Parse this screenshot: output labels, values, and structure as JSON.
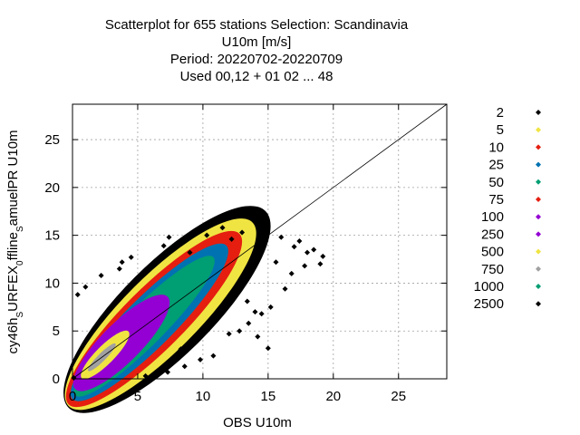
{
  "chart_data": {
    "type": "scatter",
    "title_lines": [
      "Scatterplot for  655 stations Selection: Scandinavia",
      "U10m [m/s]",
      "Period: 20220702-20220709",
      "Used  00,12  + 01 02 ... 48"
    ],
    "xlabel": "OBS U10m",
    "ylabel": "cy46h_sURFEX_0ffline_samuelPR U10m",
    "ylabel_parts": [
      {
        "text": "cy46h",
        "sub": false
      },
      {
        "text": "S",
        "sub": true
      },
      {
        "text": "URFEX",
        "sub": false
      },
      {
        "text": "0",
        "sub": true
      },
      {
        "text": "ffline",
        "sub": false
      },
      {
        "text": "S",
        "sub": true
      },
      {
        "text": "amuelPR U10m",
        "sub": false
      }
    ],
    "xlim": [
      0,
      28.7
    ],
    "ylim": [
      0,
      28.7
    ],
    "xticks": [
      0,
      5,
      10,
      15,
      20,
      25
    ],
    "yticks": [
      0,
      5,
      10,
      15,
      20,
      25
    ],
    "grid": true,
    "legend_placement": "right",
    "legend": [
      {
        "label": "2",
        "color": "#000000"
      },
      {
        "label": "5",
        "color": "#f0e442"
      },
      {
        "label": "10",
        "color": "#e51e10"
      },
      {
        "label": "25",
        "color": "#0072b2"
      },
      {
        "label": "50",
        "color": "#009e73"
      },
      {
        "label": "75",
        "color": "#e51e10"
      },
      {
        "label": "100",
        "color": "#9400d3"
      },
      {
        "label": "250",
        "color": "#9400d3"
      },
      {
        "label": "500",
        "color": "#f0e442"
      },
      {
        "label": "750",
        "color": "#a0a0a0"
      },
      {
        "label": "1000",
        "color": "#009e73"
      },
      {
        "label": "2500",
        "color": "#000000"
      }
    ],
    "diagonal": {
      "from": [
        0,
        0
      ],
      "to": [
        28.7,
        28.7
      ]
    },
    "density_bands": [
      {
        "level": "2",
        "color": "#000000",
        "along": [
          0,
          14.5
        ],
        "spread": [
          3.2,
          3.8
        ]
      },
      {
        "level": "5",
        "color": "#f0e442",
        "along": [
          0,
          13.5
        ],
        "spread": [
          2.6,
          3.2
        ]
      },
      {
        "level": "10",
        "color": "#e51e10",
        "along": [
          0,
          12.5
        ],
        "spread": [
          2.0,
          2.7
        ]
      },
      {
        "level": "25",
        "color": "#0072b2",
        "along": [
          0.3,
          11.5
        ],
        "spread": [
          1.6,
          2.2
        ]
      },
      {
        "level": "50",
        "color": "#009e73",
        "along": [
          0.5,
          10.5
        ],
        "spread": [
          1.2,
          1.8
        ]
      },
      {
        "level": "100",
        "color": "#9400d3",
        "along": [
          0.5,
          7.0
        ],
        "spread": [
          1.6,
          1.4
        ]
      },
      {
        "level": "500",
        "color": "#f0e442",
        "along": [
          1.0,
          4.0
        ],
        "spread": [
          0.7,
          0.7
        ]
      },
      {
        "level": "750",
        "color": "#a0a0a0",
        "along": [
          1.5,
          3.0
        ],
        "spread": [
          0.3,
          0.3
        ]
      }
    ],
    "outliers": [
      {
        "x": 11.0,
        "y": 16.4
      },
      {
        "x": 11.5,
        "y": 15.8
      },
      {
        "x": 14.1,
        "y": 17.0
      },
      {
        "x": 10.3,
        "y": 15.0
      },
      {
        "x": 7.4,
        "y": 14.8
      },
      {
        "x": 7.0,
        "y": 13.9
      },
      {
        "x": 4.5,
        "y": 12.7
      },
      {
        "x": 3.8,
        "y": 12.2
      },
      {
        "x": 2.2,
        "y": 10.8
      },
      {
        "x": 1.0,
        "y": 9.6
      },
      {
        "x": 0.4,
        "y": 8.8
      },
      {
        "x": 16.0,
        "y": 14.8
      },
      {
        "x": 17.0,
        "y": 13.8
      },
      {
        "x": 18.0,
        "y": 13.2
      },
      {
        "x": 19.2,
        "y": 12.8
      },
      {
        "x": 19.0,
        "y": 12.0
      },
      {
        "x": 18.5,
        "y": 13.5
      },
      {
        "x": 17.8,
        "y": 11.8
      },
      {
        "x": 15.2,
        "y": 7.5
      },
      {
        "x": 14.5,
        "y": 6.8
      },
      {
        "x": 14.0,
        "y": 7.0
      },
      {
        "x": 13.5,
        "y": 5.8
      },
      {
        "x": 15.0,
        "y": 3.2
      },
      {
        "x": 14.2,
        "y": 4.4
      },
      {
        "x": 12.8,
        "y": 5.0
      },
      {
        "x": 12.0,
        "y": 4.7
      },
      {
        "x": 10.8,
        "y": 2.4
      },
      {
        "x": 8.6,
        "y": 1.3
      },
      {
        "x": 9.8,
        "y": 2.0
      },
      {
        "x": 6.5,
        "y": 0.5
      },
      {
        "x": 5.6,
        "y": 0.3
      },
      {
        "x": 7.3,
        "y": 0.7
      },
      {
        "x": 12.2,
        "y": 14.6
      },
      {
        "x": 13.0,
        "y": 15.3
      },
      {
        "x": 9.0,
        "y": 13.2
      },
      {
        "x": 16.8,
        "y": 11.0
      },
      {
        "x": 17.4,
        "y": 14.4
      },
      {
        "x": 15.6,
        "y": 12.2
      },
      {
        "x": 8.3,
        "y": 3.1
      },
      {
        "x": 3.6,
        "y": 11.5
      },
      {
        "x": 0.1,
        "y": 0.1
      },
      {
        "x": 13.4,
        "y": 8.1
      },
      {
        "x": 16.3,
        "y": 9.4
      }
    ]
  }
}
